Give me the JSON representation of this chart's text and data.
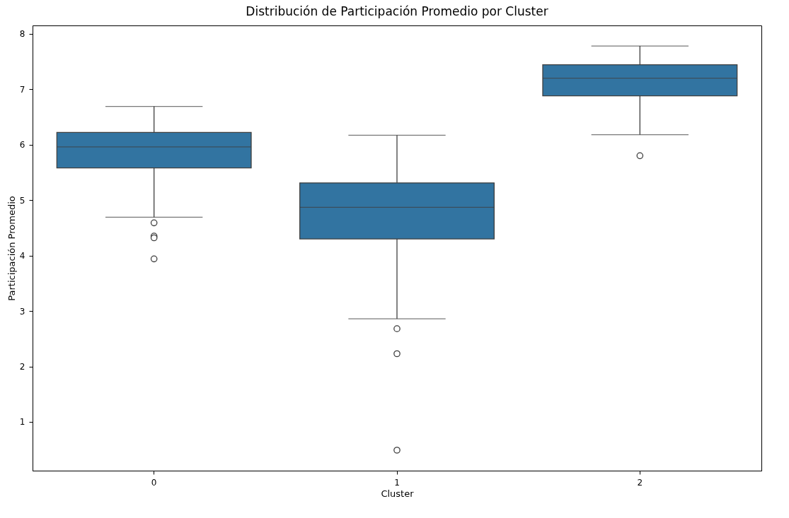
{
  "chart_data": {
    "type": "box",
    "title": "Distribución de Participación Promedio por Cluster",
    "xlabel": "Cluster",
    "ylabel": "Participación Promedio",
    "categories": [
      "0",
      "1",
      "2"
    ],
    "color": "#3274a1",
    "boxes": [
      {
        "low": 4.69,
        "q1": 5.58,
        "median": 5.96,
        "q3": 6.22,
        "high": 6.69,
        "outliers": [
          4.59,
          4.35,
          4.32,
          3.94
        ]
      },
      {
        "low": 2.86,
        "q1": 4.3,
        "median": 4.87,
        "q3": 5.31,
        "high": 6.17,
        "outliers": [
          2.68,
          2.23,
          0.49
        ]
      },
      {
        "low": 6.18,
        "q1": 6.88,
        "median": 7.2,
        "q3": 7.44,
        "high": 7.78,
        "outliers": [
          5.8
        ]
      }
    ],
    "ylim": [
      0.12,
      8.15
    ],
    "yticks": [
      1,
      2,
      3,
      4,
      5,
      6,
      7,
      8
    ],
    "grid": false
  }
}
